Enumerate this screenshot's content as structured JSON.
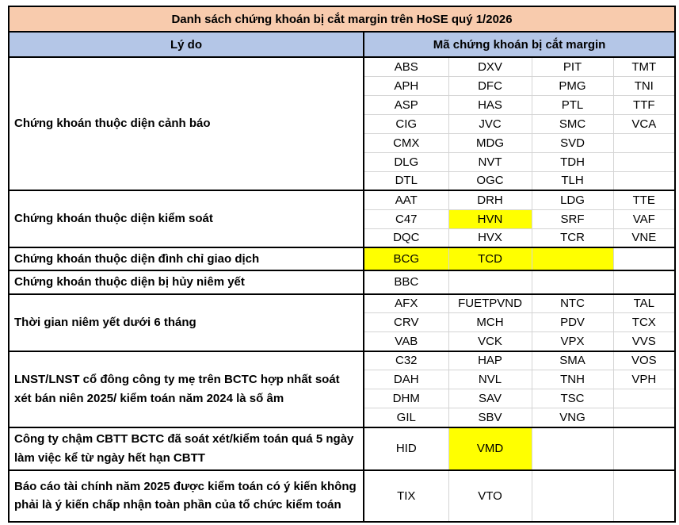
{
  "title": "Danh sách chứng khoán bị cắt margin trên HoSE quý 1/2026",
  "header": {
    "reason": "Lý do",
    "codes": "Mã chứng khoán bị cắt margin"
  },
  "colors": {
    "title_bg": "#F8CBAD",
    "header_bg": "#B4C6E7",
    "highlight": "#FFFF00",
    "gridline": "#d4d4d4",
    "border": "#000000"
  },
  "sections": [
    {
      "reason": "Chứng khoán thuộc diện cảnh báo",
      "rows": [
        [
          "ABS",
          "DXV",
          "PIT",
          "TMT"
        ],
        [
          "APH",
          "DFC",
          "PMG",
          "TNI"
        ],
        [
          "ASP",
          "HAS",
          "PTL",
          "TTF"
        ],
        [
          "CIG",
          "JVC",
          "SMC",
          "VCA"
        ],
        [
          "CMX",
          "MDG",
          "SVD",
          ""
        ],
        [
          "DLG",
          "NVT",
          "TDH",
          ""
        ],
        [
          "DTL",
          "OGC",
          "TLH",
          ""
        ]
      ],
      "highlights": []
    },
    {
      "reason": "Chứng khoán thuộc diện kiểm soát",
      "rows": [
        [
          "AAT",
          "DRH",
          "LDG",
          "TTE"
        ],
        [
          "C47",
          "HVN",
          "SRF",
          "VAF"
        ],
        [
          "DQC",
          "HVX",
          "TCR",
          "VNE"
        ]
      ],
      "highlights": [
        [
          1,
          1
        ]
      ]
    },
    {
      "reason": "Chứng khoán thuộc diện đình chỉ giao dịch",
      "rows": [
        [
          "BCG",
          "TCD",
          "",
          ""
        ]
      ],
      "highlights": [
        [
          0,
          0
        ],
        [
          0,
          1
        ],
        [
          0,
          2
        ]
      ]
    },
    {
      "reason": "Chứng khoán thuộc diện bị hủy niêm yết",
      "rows": [
        [
          "BBC",
          "",
          "",
          ""
        ]
      ],
      "highlights": []
    },
    {
      "reason": "Thời gian niêm yết dưới 6 tháng",
      "rows": [
        [
          "AFX",
          "FUETPVND",
          "NTC",
          "TAL"
        ],
        [
          "CRV",
          "MCH",
          "PDV",
          "TCX"
        ],
        [
          "VAB",
          "VCK",
          "VPX",
          "VVS"
        ]
      ],
      "highlights": []
    },
    {
      "reason": "LNST/LNST cổ đông công ty mẹ trên BCTC hợp nhất soát xét bán niên 2025/ kiểm toán năm 2024 là số âm",
      "rows": [
        [
          "C32",
          "HAP",
          "SMA",
          "VOS"
        ],
        [
          "DAH",
          "NVL",
          "TNH",
          "VPH"
        ],
        [
          "DHM",
          "SAV",
          "TSC",
          ""
        ],
        [
          "GIL",
          "SBV",
          "VNG",
          ""
        ]
      ],
      "highlights": []
    },
    {
      "reason": "Công ty chậm CBTT BCTC đã soát xét/kiểm toán quá 5 ngày làm việc kể từ ngày hết hạn CBTT",
      "rows": [
        [
          "HID",
          "VMD",
          "",
          ""
        ]
      ],
      "highlights": [
        [
          0,
          1
        ]
      ]
    },
    {
      "reason": "Báo cáo tài chính năm 2025 được kiểm toán có ý kiến không phải là ý kiến chấp nhận toàn phần của tổ chức kiểm toán",
      "rows": [
        [
          "TIX",
          "VTO",
          "",
          ""
        ]
      ],
      "highlights": []
    }
  ]
}
